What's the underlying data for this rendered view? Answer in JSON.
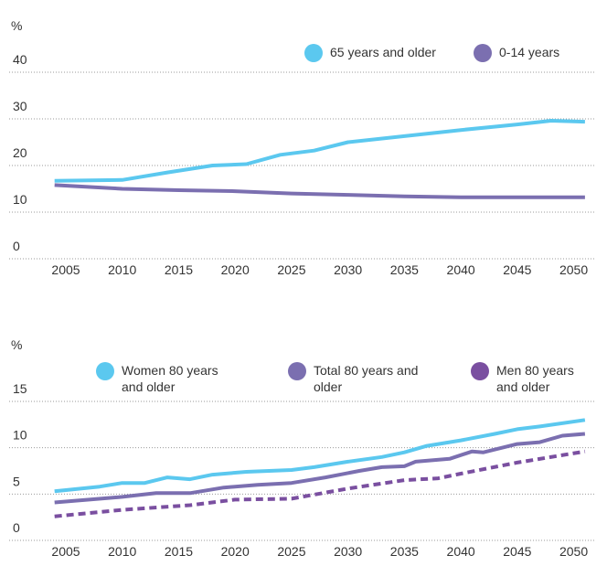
{
  "chart_data": [
    {
      "type": "line",
      "y_label": "%",
      "xlim": [
        2000,
        2052
      ],
      "ylim": [
        0,
        40
      ],
      "xticks": [
        2005,
        2010,
        2015,
        2020,
        2025,
        2030,
        2035,
        2040,
        2045,
        2050
      ],
      "yticks": [
        0,
        10,
        20,
        30,
        40
      ],
      "grid": true,
      "legend": "top-right",
      "series": [
        {
          "name": "65 years and older",
          "color": "#5bc8ef",
          "dash": false,
          "x": [
            2004,
            2010,
            2014,
            2018,
            2021,
            2024,
            2027,
            2030,
            2035,
            2040,
            2045,
            2048,
            2051
          ],
          "values": [
            16.7,
            16.9,
            18.5,
            20.0,
            20.3,
            22.3,
            23.2,
            25.0,
            26.3,
            27.6,
            28.8,
            29.6,
            29.4
          ]
        },
        {
          "name": "0-14 years",
          "color": "#7b6fb0",
          "dash": false,
          "x": [
            2004,
            2010,
            2015,
            2020,
            2025,
            2030,
            2035,
            2040,
            2045,
            2051
          ],
          "values": [
            15.8,
            15.0,
            14.7,
            14.5,
            14.0,
            13.7,
            13.4,
            13.2,
            13.2,
            13.2
          ]
        }
      ]
    },
    {
      "type": "line",
      "y_label": "%",
      "xlim": [
        2000,
        2052
      ],
      "ylim": [
        0,
        15
      ],
      "xticks": [
        2005,
        2010,
        2015,
        2020,
        2025,
        2030,
        2035,
        2040,
        2045,
        2050
      ],
      "yticks": [
        0,
        5,
        10,
        15
      ],
      "grid": true,
      "legend": "top",
      "series": [
        {
          "name": "Women 80 years and older",
          "color": "#5bc8ef",
          "dash": false,
          "x": [
            2004,
            2008,
            2010,
            2012,
            2014,
            2016,
            2018,
            2021,
            2025,
            2027,
            2030,
            2033,
            2035,
            2037,
            2040,
            2043,
            2045,
            2047,
            2051
          ],
          "values": [
            5.3,
            5.8,
            6.2,
            6.2,
            6.8,
            6.6,
            7.1,
            7.4,
            7.6,
            7.9,
            8.5,
            9.0,
            9.5,
            10.2,
            10.8,
            11.5,
            12.0,
            12.3,
            13.0
          ]
        },
        {
          "name": "Total 80 years and older",
          "color": "#7b6fb0",
          "dash": false,
          "x": [
            2004,
            2010,
            2013,
            2016,
            2019,
            2022,
            2025,
            2028,
            2031,
            2033,
            2035,
            2036,
            2039,
            2041,
            2042,
            2045,
            2047,
            2049,
            2051
          ],
          "values": [
            4.1,
            4.7,
            5.1,
            5.1,
            5.7,
            6.0,
            6.2,
            6.8,
            7.5,
            7.9,
            8.0,
            8.5,
            8.8,
            9.6,
            9.5,
            10.4,
            10.6,
            11.3,
            11.5
          ]
        },
        {
          "name": "Men 80 years and older",
          "color": "#7a4fa0",
          "dash": true,
          "x": [
            2004,
            2010,
            2016,
            2020,
            2025,
            2030,
            2035,
            2038,
            2040,
            2045,
            2051
          ],
          "values": [
            2.6,
            3.3,
            3.8,
            4.4,
            4.5,
            5.6,
            6.5,
            6.7,
            7.2,
            8.4,
            9.6
          ]
        }
      ]
    }
  ]
}
